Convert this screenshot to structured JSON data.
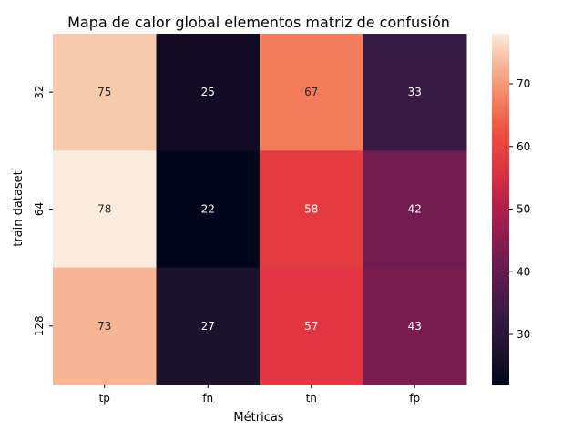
{
  "chart_data": {
    "type": "heatmap",
    "title": "Mapa de calor global elementos matriz de confusión",
    "xlabel": "Métricas",
    "ylabel": "train dataset",
    "x_categories": [
      "tp",
      "fn",
      "tn",
      "fp"
    ],
    "y_categories": [
      "32",
      "64",
      "128"
    ],
    "values": [
      [
        75,
        25,
        67,
        33
      ],
      [
        78,
        22,
        58,
        42
      ],
      [
        73,
        27,
        57,
        43
      ]
    ],
    "colorbar": {
      "range": [
        22,
        78
      ],
      "ticks": [
        30,
        40,
        50,
        60,
        70
      ],
      "colormap": "rocket"
    },
    "annotation_colors": {
      "light_text": "#ffffff",
      "dark_text": "#262626"
    },
    "grid": false
  }
}
